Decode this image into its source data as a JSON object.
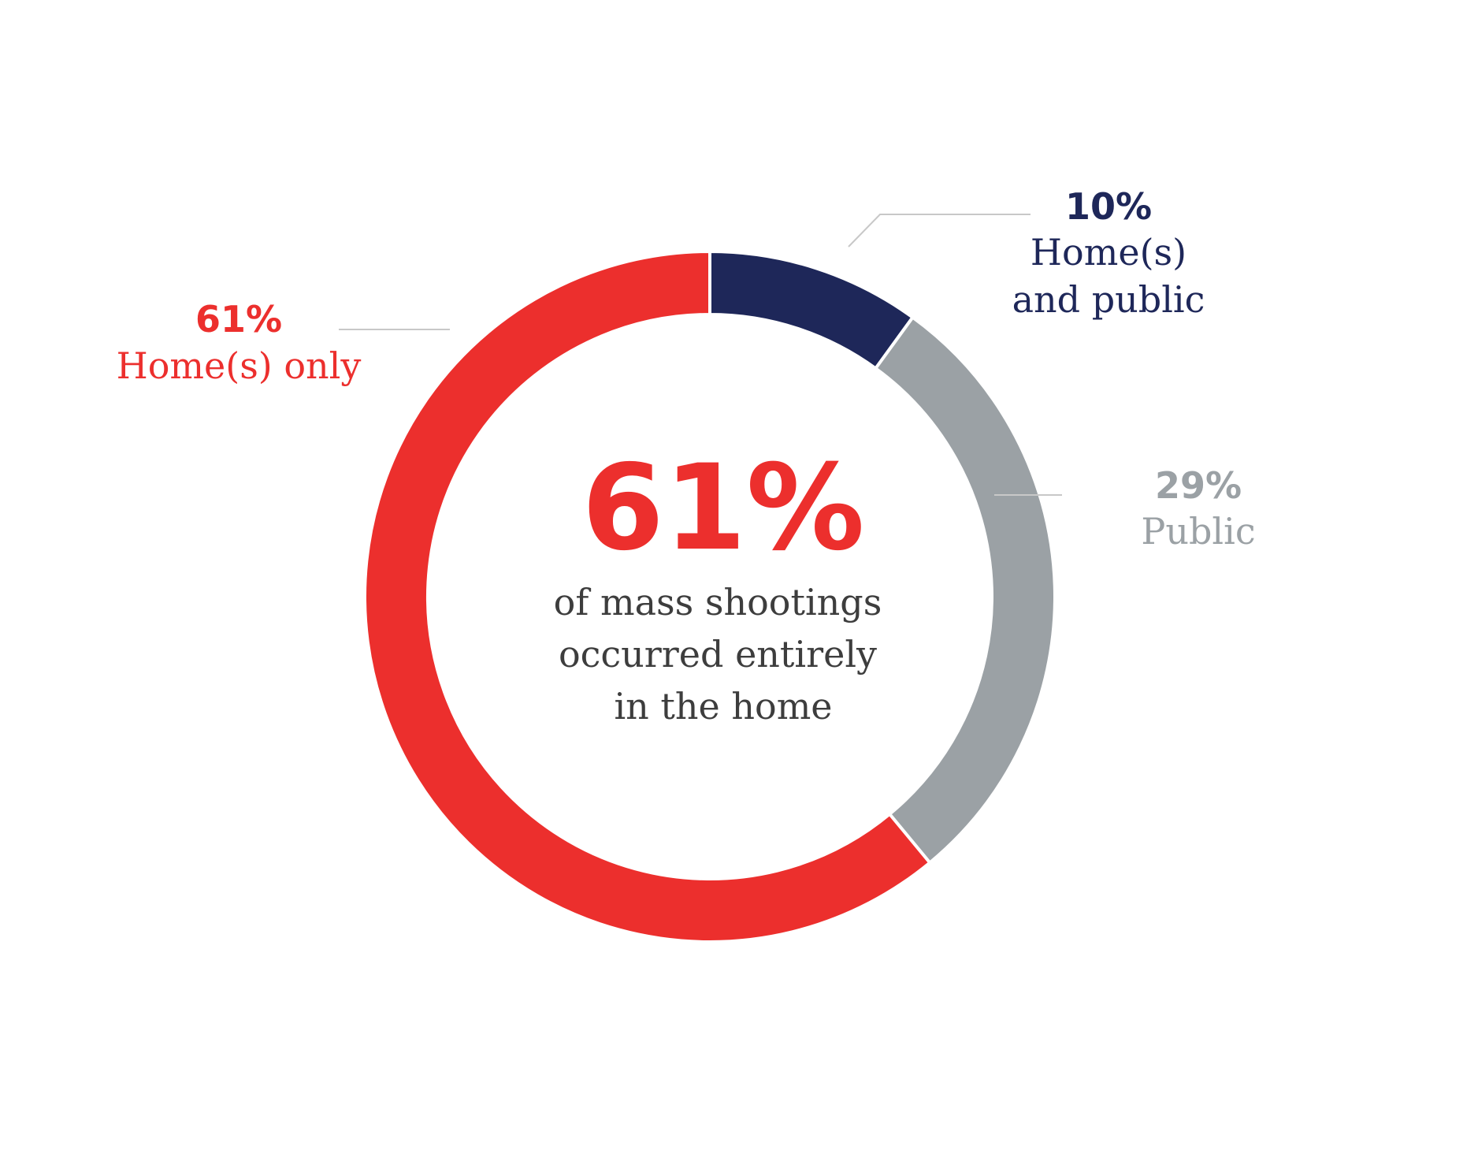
{
  "chart_data": {
    "type": "pie",
    "variant": "donut",
    "categories": [
      "Home(s) and public",
      "Public",
      "Home(s) only"
    ],
    "values": [
      10,
      29,
      61
    ],
    "value_labels": [
      "10%",
      "29%",
      "61%"
    ],
    "colors": [
      "#1e2759",
      "#9ba1a5",
      "#ec2f2d"
    ],
    "center": {
      "value": "61%",
      "text_lines": [
        "of mass shootings",
        "occurred entirely",
        "in the home"
      ],
      "value_color": "#ec2f2d",
      "text_color": "#3d3d3d"
    },
    "labels": [
      {
        "pct": "10%",
        "lines": [
          "Home(s)",
          "and public"
        ],
        "color": "#1e2759"
      },
      {
        "pct": "29%",
        "lines": [
          "Public"
        ],
        "color": "#9ba1a5"
      },
      {
        "pct": "61%",
        "lines": [
          "Home(s) only"
        ],
        "color": "#ec2f2d"
      }
    ],
    "leader_line_color": "#c8c8c8"
  }
}
